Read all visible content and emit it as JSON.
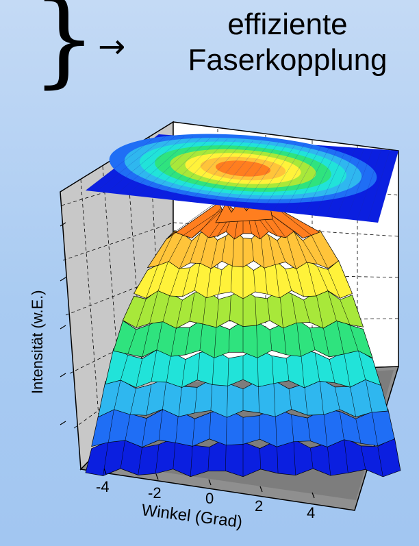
{
  "heading": {
    "brace_glyph": "}",
    "arrow_glyph": "→",
    "line1": "effiziente",
    "line2": "Faserkopplung"
  },
  "chart_data": {
    "type": "surface",
    "xlabel": "Winkel (Grad)",
    "ylabel": "Intensität (w.E.)",
    "x_ticks": [
      "-4",
      "-2",
      "0",
      "2",
      "4"
    ],
    "xlim": [
      -5,
      5
    ],
    "ylim": [
      -5,
      5
    ],
    "peak": {
      "x": 0,
      "y": 0,
      "sigma": 2.0
    },
    "projection": "filled-contour plane on top",
    "colormap": [
      "#0b1fe0",
      "#1f6ef5",
      "#2fb7ef",
      "#21e3d9",
      "#2fe37e",
      "#a8e83a",
      "#fff23a",
      "#ffc43a",
      "#ff7e1f"
    ]
  }
}
